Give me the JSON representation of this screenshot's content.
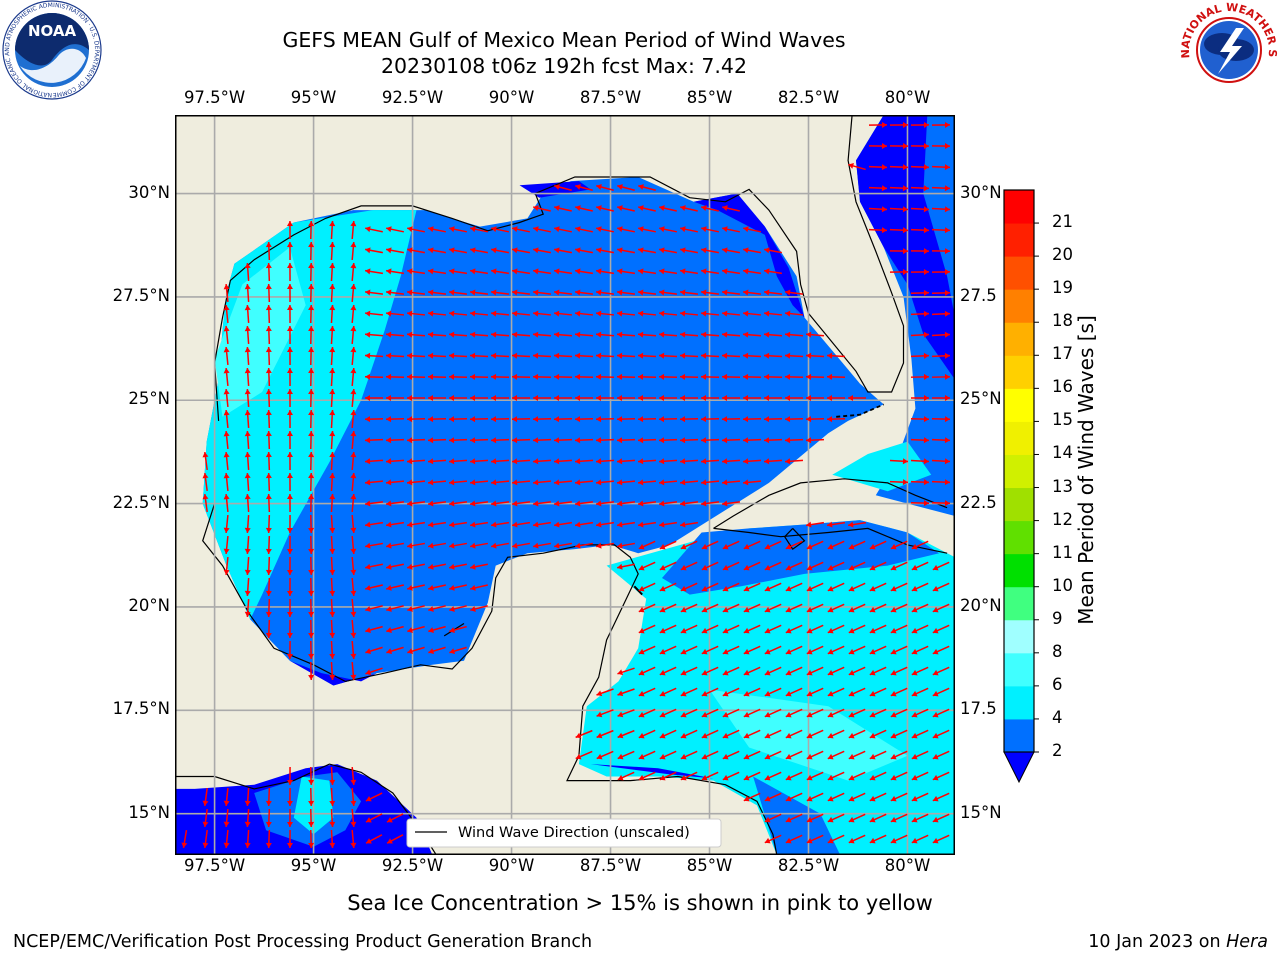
{
  "title": {
    "line1": "GEFS MEAN Gulf of Mexico Mean Period of Wind Waves",
    "line2": "20230108 t06z 192h fcst   Max: 7.42"
  },
  "axes": {
    "lon_labels": [
      "97.5°W",
      "95°W",
      "92.5°W",
      "90°W",
      "87.5°W",
      "85°W",
      "82.5°W",
      "80°W"
    ],
    "lat_labels": [
      "30°N",
      "27.5°N",
      "25°N",
      "22.5°N",
      "20°N",
      "17.5°N",
      "15°N"
    ],
    "lat_labels_right": [
      "30°N",
      "27.5",
      "25°N",
      "22.5",
      "20°N",
      "17.5",
      "15°N"
    ]
  },
  "legend": {
    "label": "Wind Wave Direction (unscaled)"
  },
  "colorbar": {
    "label": "Mean Period of Wind Waves [s]",
    "ticks": [
      "2",
      "4",
      "6",
      "8",
      "9",
      "10",
      "11",
      "12",
      "13",
      "14",
      "15",
      "16",
      "17",
      "18",
      "19",
      "20",
      "21"
    ],
    "colors": [
      "#0070ff",
      "#00f0ff",
      "#40ffff",
      "#a0ffff",
      "#40ff80",
      "#00e000",
      "#60e000",
      "#a0e000",
      "#d0f000",
      "#f0f000",
      "#ffff00",
      "#ffd000",
      "#ffb000",
      "#ff8000",
      "#ff5000",
      "#ff2000",
      "#ff0000"
    ],
    "under_color": "#0000ff"
  },
  "note": "Sea Ice Concentration > 15% is shown in pink to yellow",
  "footer": {
    "left": "NCEP/EMC/Verification Post Processing Product Generation Branch",
    "right_date": "10 Jan 2023 on ",
    "right_host": "Hera"
  },
  "logos": {
    "noaa_text": "NOAA",
    "noaa_ring": "NATIONAL OCEANIC AND ATMOSPHERIC ADMINISTRATION · U.S. DEPARTMENT OF COMMERCE",
    "nws_ring": "NATIONAL WEATHER SERVICE"
  },
  "colors": {
    "land": "#efedde",
    "ocean_low": "#0000ff",
    "ocean_mid": "#0070ff",
    "ocean_high": "#00f0ff",
    "ocean_higher": "#40ffff",
    "arrow": "#ff0000",
    "grid": "#aaaaaa"
  },
  "map": {
    "lon_range": [
      -98.5,
      -78.8
    ],
    "lat_range": [
      14.0,
      31.9
    ]
  }
}
